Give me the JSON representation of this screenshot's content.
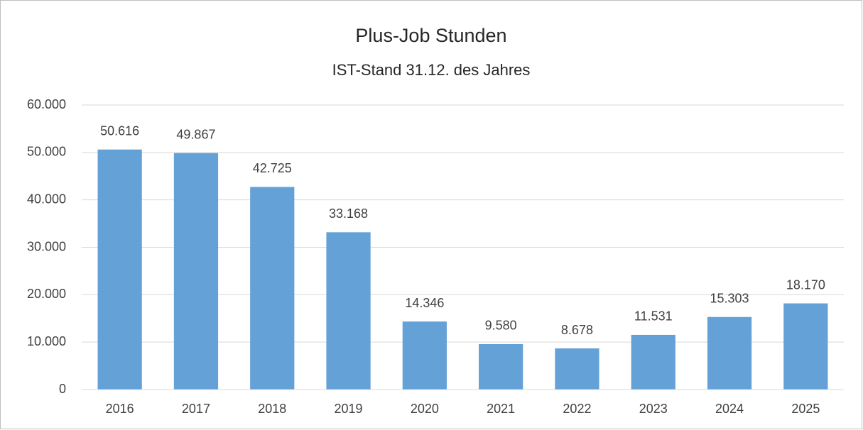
{
  "chart_data": {
    "type": "bar",
    "title": "Plus-Job Stunden",
    "subtitle": "IST-Stand 31.12. des Jahres",
    "categories": [
      "2016",
      "2017",
      "2018",
      "2019",
      "2020",
      "2021",
      "2022",
      "2023",
      "2024",
      "2025"
    ],
    "values": [
      50616,
      49867,
      42725,
      33168,
      14346,
      9580,
      8678,
      11531,
      15303,
      18170
    ],
    "value_labels": [
      "50.616",
      "49.867",
      "42.725",
      "33.168",
      "14.346",
      "9.580",
      "8.678",
      "11.531",
      "15.303",
      "18.170"
    ],
    "color": "#64a1d6",
    "ylim": [
      0,
      60000
    ],
    "yticks": [
      0,
      {
        "value": 10000,
        "label": "10.000"
      },
      {
        "value": 20000,
        "label": "20.000"
      },
      {
        "value": 30000,
        "label": "30.000"
      },
      {
        "value": 40000,
        "label": "40.000"
      },
      {
        "value": 50000,
        "label": "50.000"
      },
      {
        "value": 60000,
        "label": "60.000"
      }
    ],
    "grid": true
  }
}
